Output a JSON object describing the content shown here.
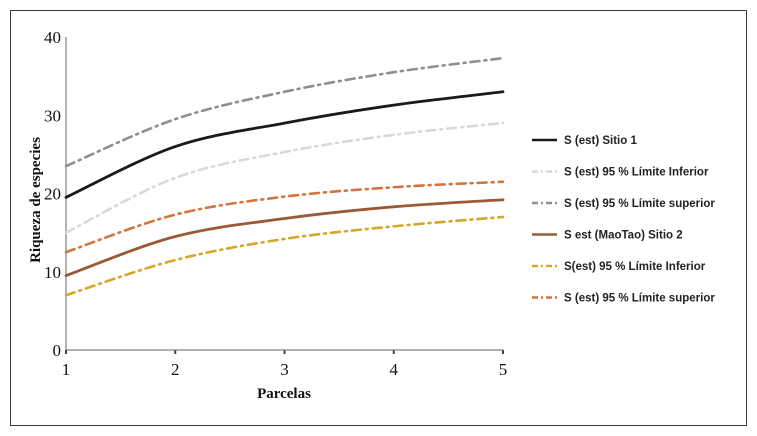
{
  "chart_data": {
    "type": "line",
    "title": "",
    "xlabel": "Parcelas",
    "ylabel": "Riqueza de especies",
    "x": [
      1,
      2,
      3,
      4,
      5
    ],
    "xlim": [
      1,
      5
    ],
    "ylim": [
      0,
      40
    ],
    "xticks": [
      "1",
      "2",
      "3",
      "4",
      "5"
    ],
    "yticks": [
      "0",
      "10",
      "20",
      "30",
      "40"
    ],
    "legend_position": "right",
    "series": [
      {
        "name": "S (est)  Sitio 1",
        "values": [
          19.5,
          26.0,
          29.0,
          31.3,
          33.0
        ],
        "color": "#1a1a1a",
        "style": "solid"
      },
      {
        "name": "S (est) 95 %  Límite Inferior",
        "values": [
          15.0,
          22.0,
          25.3,
          27.5,
          29.0
        ],
        "color": "#d9d9d9",
        "style": "dashdot"
      },
      {
        "name": "S (est) 95 %  Límite superior",
        "values": [
          23.5,
          29.5,
          33.0,
          35.5,
          37.3
        ],
        "color": "#8f8f8f",
        "style": "dashdot"
      },
      {
        "name": "S est (MaoTao) Sitio 2",
        "values": [
          9.5,
          14.5,
          16.8,
          18.3,
          19.2
        ],
        "color": "#9a5a36",
        "style": "solid"
      },
      {
        "name": "S(est) 95 %  Límite Inferior",
        "values": [
          7.0,
          11.5,
          14.2,
          15.8,
          17.0
        ],
        "color": "#d4a72c",
        "style": "dashdot"
      },
      {
        "name": "S (est) 95 %  Límite superior",
        "values": [
          12.5,
          17.3,
          19.6,
          20.8,
          21.5
        ],
        "color": "#d2753f",
        "style": "dashdot"
      }
    ]
  }
}
